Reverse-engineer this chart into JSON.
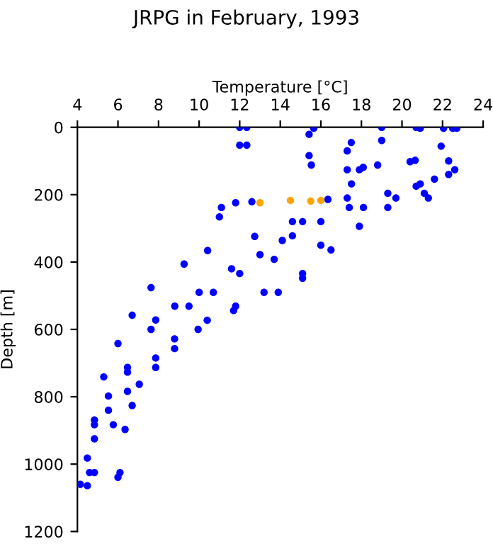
{
  "chart_data": {
    "type": "scatter",
    "title": "JRPG in February, 1993",
    "xlabel": "Temperature [°C]",
    "ylabel": "Depth [m]",
    "xlim": [
      4,
      24
    ],
    "xticks": [
      4,
      6,
      8,
      10,
      12,
      14,
      16,
      18,
      20,
      22,
      24
    ],
    "ylim": [
      1200,
      0
    ],
    "yticks": [
      0,
      200,
      400,
      600,
      800,
      1000,
      1200
    ],
    "grid": false,
    "legend": false,
    "marker": "circle",
    "series": [
      {
        "color": "#0000ff",
        "x": [
          12.0,
          12.0
        ],
        "values": [
          0,
          53
        ]
      },
      {
        "color": "#0000ff",
        "x": [
          12.35,
          12.35
        ],
        "values": [
          0,
          53
        ]
      },
      {
        "color": "#0000ff",
        "x": [
          15.65,
          15.42,
          15.42,
          15.53
        ],
        "values": [
          3,
          21,
          84,
          112
        ]
      },
      {
        "color": "#0000ff",
        "x": [
          19.0,
          19.0,
          17.5,
          17.3,
          17.3
        ],
        "values": [
          0,
          39,
          45,
          70,
          126
        ]
      },
      {
        "color": "#0000ff",
        "x": [
          20.7,
          20.7
        ],
        "values": [
          0,
          175
        ]
      },
      {
        "color": "#0000ff",
        "x": [
          22.05,
          21.93,
          20.65,
          18.09,
          17.51,
          16.35,
          14.6,
          12.74,
          10.42,
          9.26,
          7.63,
          6.7,
          6.0,
          5.3,
          4.84,
          4.49,
          4.14
        ],
        "values": [
          3,
          56,
          98,
          119,
          168,
          214,
          280,
          324,
          366,
          406,
          476,
          558,
          642,
          741,
          869,
          982,
          1060
        ]
      },
      {
        "color": "#0000ff",
        "x": [
          22.3,
          21.6,
          19.3,
          17.4,
          15.1,
          14.1,
          13.0,
          11.6,
          10.0,
          8.8,
          7.86,
          6.47,
          5.53,
          4.84,
          4.49
        ],
        "values": [
          100,
          154,
          196,
          238,
          280,
          336,
          378,
          420,
          490,
          531,
          572,
          713,
          798,
          883,
          1064
        ]
      },
      {
        "color": "#0000ff",
        "x": [
          22.7,
          22.6,
          21.1,
          18.1,
          16.0,
          14.6,
          13.7,
          12.0,
          10.7,
          9.5,
          7.63,
          6.47,
          5.53,
          4.84,
          4.6
        ],
        "values": [
          3,
          126,
          196,
          238,
          280,
          322,
          392,
          434,
          490,
          531,
          600,
          727,
          840,
          925,
          1025
        ]
      },
      {
        "color": "#0000ff",
        "x": [
          20.9,
          20.9,
          19.7,
          16.0,
          15.1,
          13.2,
          11.8,
          10.4,
          8.79,
          7.86,
          6.47,
          5.77,
          4.84
        ],
        "values": [
          3,
          168,
          210,
          350,
          434,
          490,
          531,
          573,
          628,
          685,
          784,
          883,
          1025
        ]
      },
      {
        "color": "#0000ff",
        "x": [
          22.5,
          22.3,
          21.3,
          19.3,
          17.9,
          16.5,
          15.1,
          13.9,
          11.7,
          9.95,
          8.79,
          7.86,
          7.05,
          6.7,
          6.35,
          6.1,
          6.0
        ],
        "values": [
          3,
          140,
          210,
          238,
          294,
          364,
          448,
          490,
          544,
          600,
          657,
          713,
          763,
          826,
          897,
          1025,
          1039
        ]
      },
      {
        "color": "#0000ff",
        "x": [
          20.4,
          18.8,
          17.9,
          17.3
        ],
        "values": [
          102,
          112,
          126,
          210
        ]
      },
      {
        "color": "#0000ff",
        "x": [
          12.6,
          11.8,
          11.1,
          11.0
        ],
        "values": [
          221,
          224,
          238,
          266
        ]
      },
      {
        "color": "#ffa500",
        "x": [
          13.0,
          14.5,
          15.5,
          16.0
        ],
        "values": [
          224,
          217,
          219,
          217
        ]
      }
    ]
  }
}
